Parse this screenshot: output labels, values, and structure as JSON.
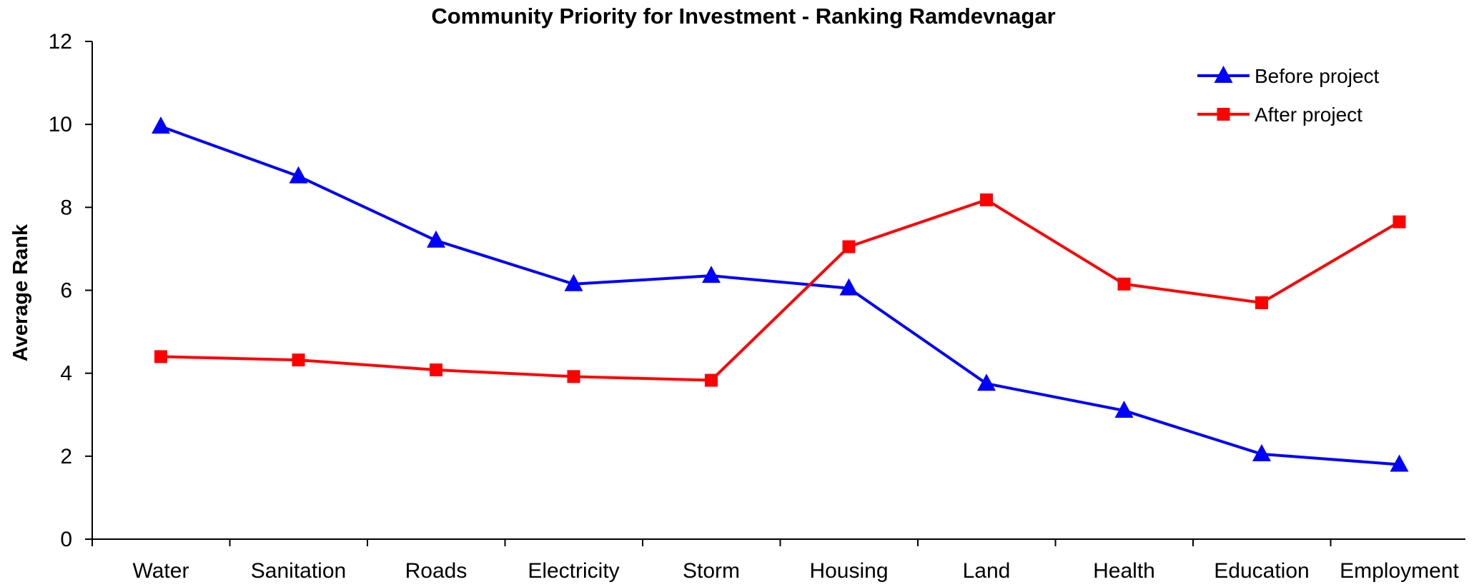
{
  "chart_data": {
    "type": "line",
    "title": "Community Priority for Investment - Ranking Ramdevnagar",
    "xlabel": "",
    "ylabel": "Average Rank",
    "ylim": [
      0,
      12
    ],
    "yticks": [
      0,
      2,
      4,
      6,
      8,
      10,
      12
    ],
    "categories": [
      "Water",
      "Sanitation",
      "Roads",
      "Electricity",
      "Storm",
      "Housing",
      "Land",
      "Health",
      "Education",
      "Employment"
    ],
    "series": [
      {
        "name": "Before project",
        "color": "#0000ff",
        "marker": "triangle",
        "values": [
          9.95,
          8.75,
          7.2,
          6.15,
          6.35,
          6.05,
          3.75,
          3.1,
          2.05,
          1.8
        ]
      },
      {
        "name": "After project",
        "color": "#ff0000",
        "marker": "square",
        "values": [
          4.4,
          4.32,
          4.08,
          3.92,
          3.83,
          7.05,
          8.18,
          6.15,
          5.7,
          7.65
        ]
      }
    ],
    "grid": false,
    "legend": "top-right"
  }
}
